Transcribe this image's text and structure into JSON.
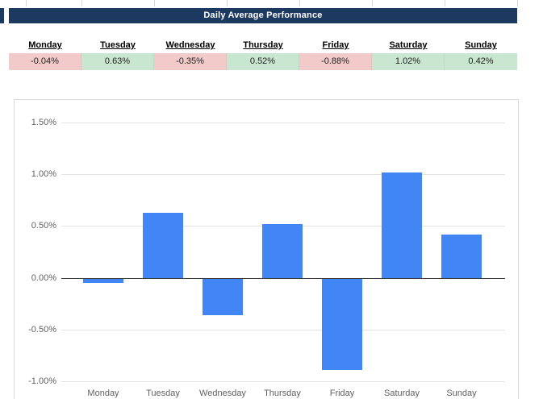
{
  "title_bar": {
    "text": "Daily Average Performance"
  },
  "performance_table": {
    "columns": [
      {
        "day": "Monday",
        "value": "-0.04%",
        "status": "negative"
      },
      {
        "day": "Tuesday",
        "value": "0.63%",
        "status": "positive"
      },
      {
        "day": "Wednesday",
        "value": "-0.35%",
        "status": "negative"
      },
      {
        "day": "Thursday",
        "value": "0.52%",
        "status": "positive"
      },
      {
        "day": "Friday",
        "value": "-0.88%",
        "status": "negative"
      },
      {
        "day": "Saturday",
        "value": "1.02%",
        "status": "positive"
      },
      {
        "day": "Sunday",
        "value": "0.42%",
        "status": "positive"
      }
    ]
  },
  "chart_data": {
    "type": "bar",
    "title": "",
    "categories": [
      "Monday",
      "Tuesday",
      "Wednesday",
      "Thursday",
      "Friday",
      "Saturday",
      "Sunday"
    ],
    "values": [
      -0.04,
      0.63,
      -0.35,
      0.52,
      -0.88,
      1.02,
      0.42
    ],
    "unit": "percent",
    "xlabel": "",
    "ylabel": "",
    "ylim": [
      -1.0,
      1.5
    ],
    "yticks": [
      {
        "value": 1.5,
        "label": "1.50%"
      },
      {
        "value": 1.0,
        "label": "1.00%"
      },
      {
        "value": 0.5,
        "label": "0.50%"
      },
      {
        "value": 0.0,
        "label": "0.00%"
      },
      {
        "value": -0.5,
        "label": "-0.50%"
      },
      {
        "value": -1.0,
        "label": "-1.00%"
      }
    ],
    "grid": true,
    "legend": "none",
    "bar_color": "#4285f4"
  },
  "colors": {
    "title_bg": "#1c3a60",
    "title_text": "#ffffff",
    "negative_cell_bg": "#f3caca",
    "positive_cell_bg": "#c8e6d0",
    "bar": "#4285f4",
    "gridline": "#e3e3e3",
    "zero_axis": "#3c3c3c",
    "axis_label": "#616161",
    "chart_border": "#d9d9d9"
  }
}
